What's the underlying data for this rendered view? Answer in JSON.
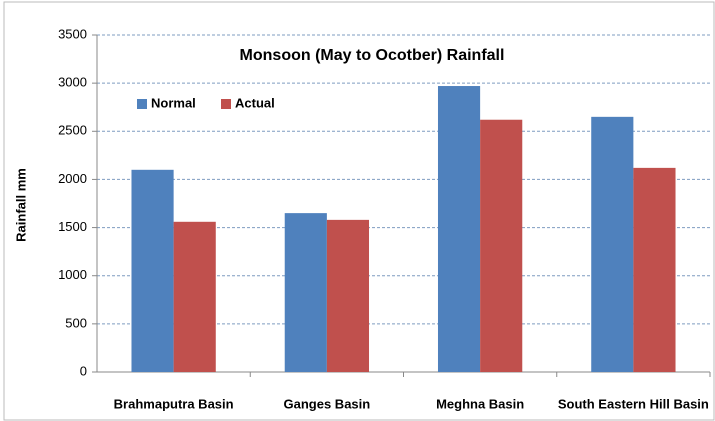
{
  "chart_data": {
    "type": "bar",
    "title": "Monsoon (May to Ocotber) Rainfall",
    "y_label": "Rainfall mm",
    "categories": [
      "Brahmaputra Basin",
      "Ganges Basin",
      "Meghna Basin",
      "South Eastern Hill Basin"
    ],
    "series": [
      {
        "name": "Normal",
        "color": "#4f81bd",
        "values": [
          2100,
          1650,
          2970,
          2650
        ]
      },
      {
        "name": "Actual",
        "color": "#c0504d",
        "values": [
          1560,
          1580,
          2620,
          2120
        ]
      }
    ],
    "ylim": [
      0,
      3500
    ],
    "yticks": [
      0,
      500,
      1000,
      1500,
      2000,
      2500,
      3000,
      3500
    ],
    "grid": true,
    "legend": "upper left"
  }
}
